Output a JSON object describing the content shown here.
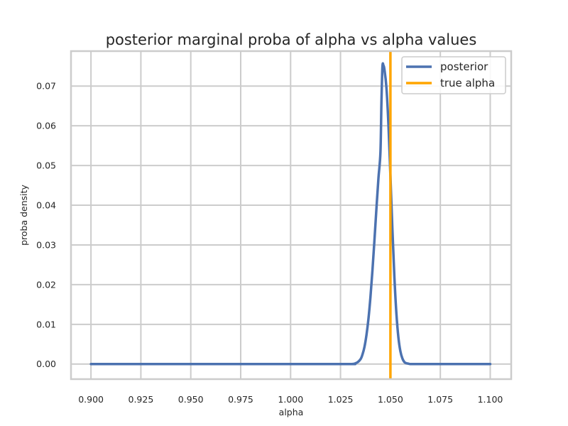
{
  "chart_data": {
    "type": "line",
    "title": "posterior marginal proba of alpha vs alpha values",
    "xlabel": "alpha",
    "ylabel": "proba density",
    "xlim": [
      0.89,
      1.1105
    ],
    "ylim": [
      -0.0038,
      0.0788
    ],
    "xticks": [
      0.9,
      0.925,
      0.95,
      0.975,
      1.0,
      1.025,
      1.05,
      1.075,
      1.1
    ],
    "yticks": [
      0.0,
      0.01,
      0.02,
      0.03,
      0.04,
      0.05,
      0.06,
      0.07
    ],
    "xtick_labels": [
      "0.900",
      "0.925",
      "0.950",
      "0.975",
      "1.000",
      "1.025",
      "1.050",
      "1.075",
      "1.100"
    ],
    "ytick_labels": [
      "0.00",
      "0.01",
      "0.02",
      "0.03",
      "0.04",
      "0.05",
      "0.06",
      "0.07"
    ],
    "grid": true,
    "legend_position": "top-right",
    "series": [
      {
        "name": "posterior",
        "color": "#4c72b0",
        "x": [
          0.9,
          1.02,
          1.03,
          1.033,
          1.035,
          1.036,
          1.037,
          1.038,
          1.039,
          1.04,
          1.041,
          1.042,
          1.043,
          1.044,
          1.045,
          1.0455,
          1.046,
          1.0465,
          1.047,
          1.048,
          1.049,
          1.05,
          1.051,
          1.052,
          1.053,
          1.054,
          1.055,
          1.056,
          1.057,
          1.058,
          1.059,
          1.06,
          1.062,
          1.065,
          1.07,
          1.1
        ],
        "y": [
          0.0,
          0.0,
          0.0,
          0.0003,
          0.0012,
          0.0024,
          0.0043,
          0.0073,
          0.0114,
          0.0169,
          0.0236,
          0.0312,
          0.0392,
          0.0468,
          0.0533,
          0.0658,
          0.0749,
          0.0752,
          0.0742,
          0.0696,
          0.0604,
          0.0474,
          0.0338,
          0.0218,
          0.0127,
          0.0067,
          0.0032,
          0.0014,
          0.0005,
          0.0002,
          0.0001,
          0.0,
          0.0,
          0.0,
          0.0,
          0.0
        ]
      },
      {
        "name": "true alpha",
        "color": "#ffa500",
        "type": "vline",
        "x": 1.05
      }
    ]
  }
}
